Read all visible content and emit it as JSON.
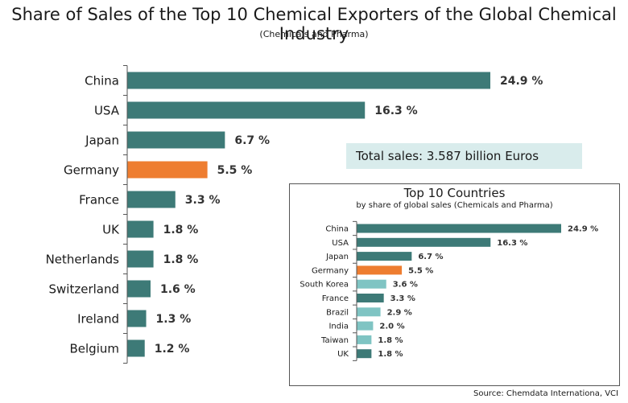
{
  "title": "Share of Sales of the Top 10 Chemical Exporters of the Global Chemical Industry",
  "subtitle": "(Chemicals and Pharma)",
  "total_sales": "Total sales: 3.587 billion Euros",
  "source": "Source: Chemdata Internationa, VCI",
  "colors": {
    "bar": "#3d7a77",
    "highlight": "#ee7d30",
    "light": "#7fc4c3",
    "axis": "#555555"
  },
  "chart_data": [
    {
      "type": "bar",
      "orientation": "horizontal",
      "title": "Share of Sales of the Top 10 Chemical Exporters of the Global Chemical Industry",
      "subtitle": "(Chemicals and Pharma)",
      "categories": [
        "China",
        "USA",
        "Japan",
        "Germany",
        "France",
        "UK",
        "Netherlands",
        "Switzerland",
        "Ireland",
        "Belgium"
      ],
      "values": [
        24.9,
        16.3,
        6.7,
        5.5,
        3.3,
        1.8,
        1.8,
        1.6,
        1.3,
        1.2
      ],
      "labels": [
        "24.9 %",
        "16.3 %",
        "6.7 %",
        "5.5 %",
        "3.3 %",
        "1.8 %",
        "1.8 %",
        "1.6 %",
        "1.3 %",
        "1.2 %"
      ],
      "highlight": "Germany"
    },
    {
      "type": "bar",
      "orientation": "horizontal",
      "title": "Top 10 Countries",
      "subtitle": "by share of global sales (Chemicals and Pharma)",
      "categories": [
        "China",
        "USA",
        "Japan",
        "Germany",
        "South Korea",
        "France",
        "Brazil",
        "India",
        "Taiwan",
        "UK"
      ],
      "values": [
        24.9,
        16.3,
        6.7,
        5.5,
        3.6,
        3.3,
        2.9,
        2.0,
        1.8,
        1.8
      ],
      "labels": [
        "24.9 %",
        "16.3 %",
        "6.7 %",
        "5.5 %",
        "3.6 %",
        "3.3 %",
        "2.9 %",
        "2.0 %",
        "1.8 %",
        "1.8 %"
      ],
      "highlight": "Germany",
      "light": [
        "South Korea",
        "Brazil",
        "India",
        "Taiwan"
      ]
    }
  ]
}
